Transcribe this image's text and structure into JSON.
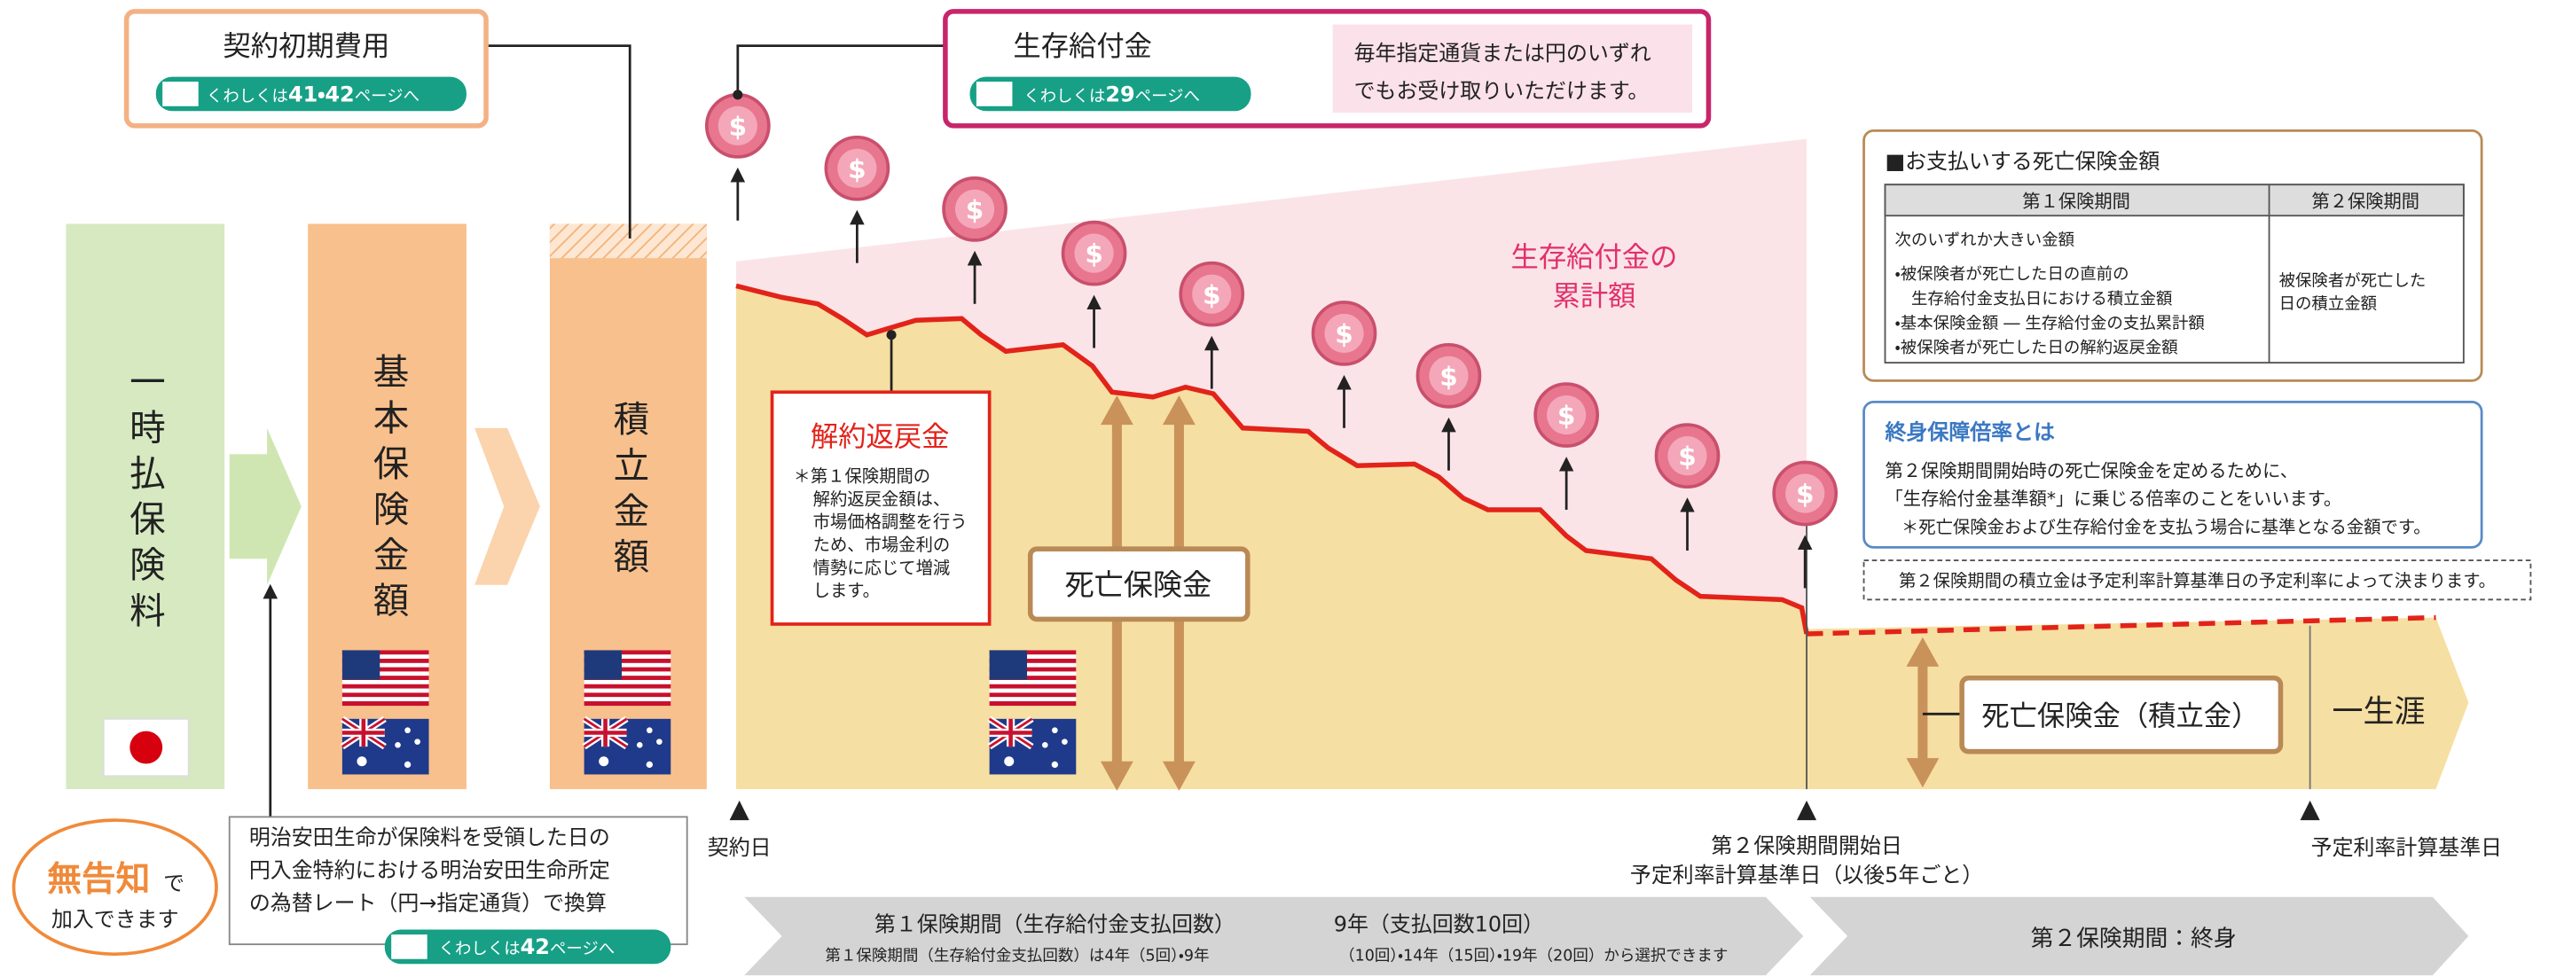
{
  "cost_box": {
    "title": "契約初期費用",
    "link": {
      "prefix": "くわしくは",
      "pages": "41・42",
      "suffix": "ページへ"
    }
  },
  "benefit_box": {
    "title": "生存給付金",
    "link": {
      "prefix": "くわしくは",
      "pages": "29",
      "suffix": "ページへ"
    },
    "note": [
      "毎年指定通貨または円のいずれ",
      "でもお受け取りいただけます。"
    ]
  },
  "columns": [
    "一時払保険料",
    "基本保険金額",
    "積立金額"
  ],
  "coin_symbol": "$",
  "cumulative_label": [
    "生存給付金の",
    "累計額"
  ],
  "surrender": {
    "title": "解約返戻金",
    "note": [
      "＊第１保険期間の",
      "解約返戻金額は、",
      "市場価格調整を行う",
      "ため、市場金利の",
      "情勢に応じて増減",
      "します。"
    ]
  },
  "death_benefit": "死亡保険金",
  "death_benefit_reserve": "死亡保険金（積立金）",
  "lifetime": "一生涯",
  "payout_panel": {
    "title": "■お支払いする死亡保険金額",
    "headers": [
      "第１保険期間",
      "第２保険期間"
    ],
    "cells": [
      [
        "次のいずれか大きい金額",
        "・被保険者が死亡した日の直前の",
        "　生存給付金支払日における積立金額",
        "・基本保険金額 ― 生存給付金の支払累計額",
        "・被保険者が死亡した日の解約返戻金額"
      ],
      [
        "被保険者が死亡した",
        "日の積立金額"
      ]
    ]
  },
  "multiplier_box": {
    "title": "終身保障倍率とは",
    "lines": [
      "第２保険期間開始時の死亡保険金を定めるために、",
      "「生存給付金基準額*」に乗じる倍率のことをいいます。",
      "＊死亡保険金および生存給付金を支払う場合に基準となる金額です。"
    ]
  },
  "rate_note": "第２保険期間の積立金は予定利率計算基準日の予定利率によって決まります。",
  "timeline": {
    "contract_date": "契約日",
    "second_start": [
      "第２保険期間開始日",
      "予定利率計算基準日（以後5年ごと）"
    ],
    "rate_date": "予定利率計算基準日"
  },
  "no_disclosure": {
    "emphasis": "無告知",
    "particle": "で",
    "line2": "加入できます"
  },
  "exchange_note": {
    "lines": [
      "明治安田生命が保険料を受領した日の",
      "円入金特約における明治安田生命所定",
      "の為替レート（円→指定通貨）で換算"
    ],
    "link": {
      "prefix": "くわしくは",
      "pages": "42",
      "suffix": "ページへ"
    }
  },
  "periods": {
    "first": {
      "title": "第１保険期間（生存給付金支払回数）",
      "example": "9年（支払回数10回）",
      "options": [
        "第１保険期間（生存給付金支払回数）は4年（5回）・9年",
        "（10回）・14年（15回）・19年（20回）から選択できます"
      ]
    },
    "second": "第２保険期間：終身"
  }
}
